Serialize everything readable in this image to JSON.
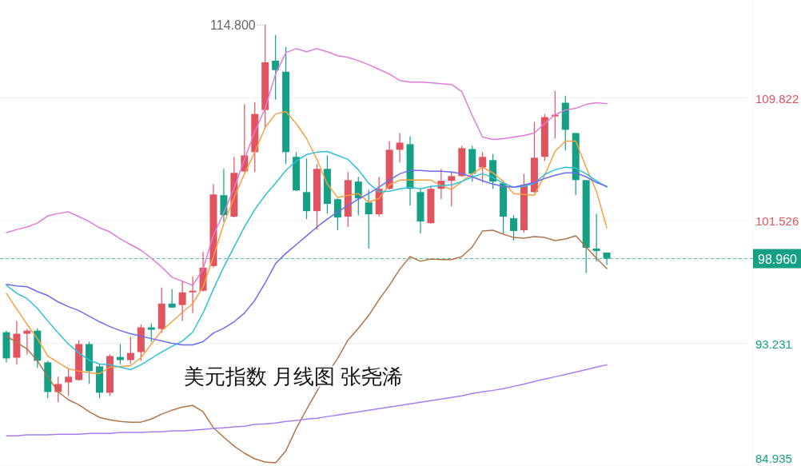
{
  "chart_data": {
    "type": "candlestick",
    "title": "美元指数 月线图 张尧浠",
    "categories": [
      null,
      null,
      null,
      null,
      null,
      null,
      null,
      null,
      null,
      null,
      null,
      null,
      null,
      null,
      null,
      null,
      null,
      null,
      null,
      null,
      null,
      null,
      null,
      null,
      null,
      null,
      null,
      null,
      null,
      null,
      null,
      null,
      null,
      null,
      null,
      null,
      null,
      null,
      null,
      null,
      null,
      null,
      null,
      null,
      null,
      null,
      null,
      null,
      null,
      null,
      null,
      null,
      null,
      null,
      null,
      null,
      null,
      null,
      null
    ],
    "ohlc": [
      [
        93.98,
        94.09,
        91.94,
        92.21
      ],
      [
        92.26,
        94.74,
        91.78,
        93.88
      ],
      [
        93.88,
        94.2,
        92.48,
        94.09
      ],
      [
        94.09,
        94.25,
        91.56,
        92.05
      ],
      [
        91.94,
        92.05,
        89.51,
        89.94
      ],
      [
        89.94,
        90.97,
        89.24,
        90.48
      ],
      [
        90.59,
        91.56,
        89.68,
        90.97
      ],
      [
        90.75,
        93.45,
        90.7,
        93.18
      ],
      [
        93.18,
        93.34,
        90.48,
        91.35
      ],
      [
        91.67,
        91.83,
        89.51,
        89.89
      ],
      [
        89.89,
        92.48,
        89.68,
        92.37
      ],
      [
        92.31,
        93.18,
        91.83,
        92.1
      ],
      [
        92.1,
        93.66,
        91.83,
        92.58
      ],
      [
        92.64,
        94.52,
        92.05,
        94.31
      ],
      [
        94.31,
        94.58,
        93.34,
        94.15
      ],
      [
        94.2,
        97.0,
        93.93,
        95.92
      ],
      [
        95.92,
        96.89,
        95.65,
        95.65
      ],
      [
        95.82,
        97.49,
        94.74,
        96.68
      ],
      [
        96.68,
        97.76,
        95.28,
        96.79
      ],
      [
        96.79,
        99.42,
        96.73,
        98.35
      ],
      [
        98.46,
        104.0,
        98.35,
        103.3
      ],
      [
        103.25,
        105.03,
        101.42,
        101.9
      ],
      [
        101.8,
        105.84,
        101.74,
        104.76
      ],
      [
        104.86,
        109.39,
        104.81,
        105.94
      ],
      [
        106.16,
        109.55,
        104.81,
        108.74
      ],
      [
        109.01,
        114.8,
        107.77,
        112.24
      ],
      [
        112.35,
        114.08,
        109.71,
        111.71
      ],
      [
        111.6,
        113.27,
        105.35,
        106.16
      ],
      [
        105.84,
        106.16,
        103.52,
        103.57
      ],
      [
        103.46,
        105.73,
        101.63,
        102.17
      ],
      [
        102.17,
        105.35,
        100.93,
        105.03
      ],
      [
        105.03,
        105.94,
        102.01,
        102.66
      ],
      [
        102.98,
        103.03,
        100.88,
        101.74
      ],
      [
        101.8,
        104.81,
        101.1,
        104.27
      ],
      [
        104.17,
        104.49,
        101.9,
        103.03
      ],
      [
        102.76,
        103.63,
        99.64,
        101.96
      ],
      [
        101.96,
        104.49,
        101.8,
        103.68
      ],
      [
        103.68,
        106.91,
        103.63,
        106.32
      ],
      [
        106.32,
        107.45,
        105.46,
        106.8
      ],
      [
        106.7,
        107.24,
        102.55,
        103.68
      ],
      [
        103.46,
        103.68,
        100.66,
        101.47
      ],
      [
        101.36,
        103.9,
        101.31,
        103.68
      ],
      [
        103.68,
        105.03,
        102.98,
        104.22
      ],
      [
        104.22,
        104.86,
        102.5,
        104.54
      ],
      [
        104.54,
        106.59,
        104.49,
        106.43
      ],
      [
        106.37,
        106.59,
        104.17,
        104.7
      ],
      [
        105.13,
        106.16,
        104.11,
        105.84
      ],
      [
        105.62,
        106.05,
        103.68,
        104.17
      ],
      [
        104.06,
        104.17,
        100.66,
        101.8
      ],
      [
        101.69,
        101.9,
        100.18,
        100.83
      ],
      [
        100.88,
        104.7,
        100.72,
        103.95
      ],
      [
        103.46,
        108.2,
        103.41,
        105.78
      ],
      [
        105.84,
        108.74,
        105.57,
        108.53
      ],
      [
        108.58,
        110.31,
        107.07,
        108.69
      ],
      [
        109.5,
        109.98,
        106.27,
        107.67
      ],
      [
        107.45,
        107.45,
        103.25,
        104.27
      ],
      [
        104.27,
        104.27,
        97.97,
        99.69
      ],
      [
        99.64,
        102.01,
        98.78,
        99.48
      ],
      [
        99.37,
        99.37,
        98.51,
        98.96
      ]
    ],
    "colors": [
      "#14a085",
      "#e0535f",
      "#e0535f",
      "#14a085",
      "#14a085",
      "#e0535f",
      "#e0535f",
      "#e0535f",
      "#14a085",
      "#14a085",
      "#e0535f",
      "#14a085",
      "#e0535f",
      "#e0535f",
      "#14a085",
      "#e0535f",
      "#14a085",
      "#e0535f",
      "#e0535f",
      "#e0535f",
      "#e0535f",
      "#14a085",
      "#e0535f",
      "#e0535f",
      "#e0535f",
      "#e0535f",
      "#14a085",
      "#14a085",
      "#14a085",
      "#14a085",
      "#e0535f",
      "#14a085",
      "#14a085",
      "#e0535f",
      "#14a085",
      "#14a085",
      "#e0535f",
      "#e0535f",
      "#e0535f",
      "#14a085",
      "#14a085",
      "#e0535f",
      "#e0535f",
      "#e0535f",
      "#e0535f",
      "#14a085",
      "#e0535f",
      "#14a085",
      "#14a085",
      "#14a085",
      "#e0535f",
      "#e0535f",
      "#e0535f",
      "#e0535f",
      "#14a085",
      "#14a085",
      "#14a085",
      "#14a085",
      "#14a085"
    ],
    "series": [
      {
        "type": "line",
        "color": "#f7a043",
        "values": [
          96.62,
          95.55,
          94.52,
          93.55,
          92.37,
          91.94,
          91.51,
          91.35,
          91.24,
          91.18,
          91.62,
          91.67,
          91.72,
          92.26,
          93.18,
          94.09,
          94.69,
          95.33,
          95.92,
          97.06,
          99.1,
          101.31,
          103.09,
          104.7,
          106.16,
          107.83,
          108.74,
          108.91,
          108.1,
          107.07,
          105.67,
          104.0,
          103.09,
          103.25,
          103.36,
          102.77,
          103.03,
          103.95,
          104.27,
          104.27,
          104.27,
          104.27,
          103.9,
          103.63,
          104.17,
          104.7,
          105.14,
          104.76,
          104.17,
          103.36,
          103.3,
          103.25,
          104.6,
          106.21,
          106.91,
          106.91,
          105.14,
          103.52,
          101.04
        ]
      },
      {
        "type": "line",
        "color": "#2ec0d8",
        "values": [
          97.16,
          96.62,
          96.25,
          95.6,
          94.74,
          93.93,
          93.18,
          92.58,
          92.1,
          91.83,
          91.78,
          91.62,
          91.45,
          91.78,
          92.21,
          92.64,
          93.02,
          93.39,
          93.99,
          95.28,
          96.89,
          98.4,
          99.75,
          101.1,
          102.28,
          103.25,
          104.06,
          104.92,
          105.57,
          106.0,
          106.16,
          106.21,
          105.94,
          105.67,
          104.97,
          104.06,
          103.47,
          103.52,
          103.68,
          103.79,
          103.68,
          103.84,
          103.9,
          103.95,
          104.17,
          104.49,
          104.7,
          104.44,
          104.06,
          103.79,
          103.84,
          104.06,
          104.65,
          104.97,
          105.14,
          105.08,
          104.7,
          104.22,
          103.79
        ]
      },
      {
        "type": "line",
        "color": "#6c6cf0",
        "values": [
          97.22,
          97.11,
          97.06,
          96.73,
          96.46,
          96.03,
          95.71,
          95.44,
          95.06,
          94.69,
          94.36,
          94.09,
          93.88,
          93.72,
          93.55,
          93.39,
          93.23,
          93.12,
          93.12,
          93.34,
          93.93,
          94.25,
          94.69,
          95.28,
          96.14,
          97.32,
          98.62,
          99.32,
          99.91,
          100.5,
          101.1,
          101.63,
          102.12,
          102.55,
          102.98,
          103.36,
          103.79,
          104.27,
          104.7,
          104.92,
          104.92,
          104.87,
          104.87,
          104.81,
          104.7,
          104.49,
          104.22,
          104.0,
          103.84,
          103.79,
          103.95,
          104.11,
          104.38,
          104.6,
          104.76,
          104.76,
          104.49,
          104.11,
          103.84
        ]
      },
      {
        "type": "line",
        "color": "#e07ad8",
        "values": [
          100.72,
          100.93,
          101.1,
          101.36,
          101.85,
          102.01,
          102.12,
          101.8,
          101.47,
          101.04,
          100.77,
          100.29,
          99.91,
          99.53,
          98.99,
          98.4,
          97.7,
          97.43,
          97.16,
          98.24,
          100.56,
          102.07,
          103.73,
          105.67,
          107.56,
          109.12,
          111.44,
          112.89,
          113.16,
          112.95,
          113.16,
          112.95,
          112.68,
          112.57,
          112.35,
          112.08,
          111.76,
          111.44,
          111.01,
          110.9,
          110.9,
          110.85,
          110.79,
          110.74,
          110.25,
          108.64,
          107.18,
          107.02,
          107.07,
          107.18,
          107.29,
          107.45,
          108.1,
          108.69,
          109.01,
          109.12,
          109.39,
          109.5,
          109.44
        ]
      },
      {
        "type": "line",
        "color": "#b07448",
        "values": [
          93.72,
          93.29,
          92.85,
          92.05,
          90.97,
          89.95,
          89.41,
          89.08,
          88.6,
          88.22,
          88.06,
          87.95,
          87.9,
          87.9,
          88.11,
          88.44,
          88.71,
          88.92,
          89.03,
          88.6,
          87.52,
          86.88,
          86.28,
          85.8,
          85.42,
          85.21,
          85.15,
          85.96,
          87.47,
          88.76,
          90.0,
          91.18,
          92.21,
          93.45,
          94.25,
          95.12,
          96.19,
          97.16,
          98.24,
          99.1,
          98.78,
          98.94,
          98.89,
          98.89,
          99.1,
          99.75,
          100.83,
          100.88,
          100.61,
          100.39,
          100.34,
          100.45,
          100.39,
          100.18,
          100.29,
          100.5,
          99.75,
          98.99,
          98.29
        ]
      },
      {
        "type": "line",
        "color": "#a77ef0",
        "values": [
          86.98,
          86.98,
          87.04,
          87.04,
          87.04,
          87.09,
          87.09,
          87.09,
          87.14,
          87.14,
          87.14,
          87.2,
          87.2,
          87.2,
          87.25,
          87.25,
          87.31,
          87.31,
          87.36,
          87.41,
          87.47,
          87.52,
          87.58,
          87.63,
          87.74,
          87.79,
          87.84,
          87.95,
          88.01,
          88.11,
          88.17,
          88.28,
          88.38,
          88.49,
          88.6,
          88.71,
          88.81,
          88.92,
          89.03,
          89.14,
          89.25,
          89.35,
          89.46,
          89.57,
          89.68,
          89.84,
          89.95,
          90.05,
          90.16,
          90.32,
          90.48,
          90.65,
          90.81,
          90.97,
          91.13,
          91.29,
          91.45,
          91.62,
          91.78
        ]
      }
    ],
    "ylim": [
      84.935,
      116.45
    ],
    "yticks": [
      109.822,
      101.526,
      93.231,
      84.935
    ],
    "grid": "y",
    "tick_labels": "y",
    "ref_lines": [
      {
        "axis": "y",
        "value": 98.96,
        "label": "98.960",
        "color": "#14a085",
        "line_style": "dashed"
      }
    ],
    "annotations": [
      "114.800"
    ]
  }
}
